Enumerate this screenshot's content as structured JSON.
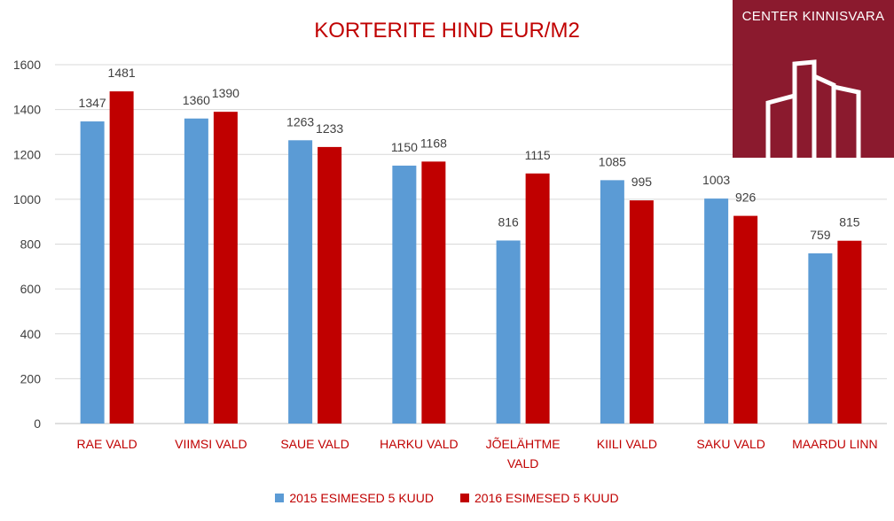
{
  "chart_data": {
    "type": "bar",
    "title": "KORTERITE HIND EUR/M2",
    "categories": [
      "RAE VALD",
      "VIIMSI VALD",
      "SAUE VALD",
      "HARKU VALD",
      "JÕELÄHTME VALD",
      "KIILI VALD",
      "SAKU VALD",
      "MAARDU LINN"
    ],
    "series": [
      {
        "name": "2015 ESIMESED 5 KUUD",
        "color": "#5b9bd5",
        "values": [
          1347,
          1360,
          1263,
          1150,
          816,
          1085,
          1003,
          759
        ]
      },
      {
        "name": "2016 ESIMESED 5 KUUD",
        "color": "#c00000",
        "values": [
          1481,
          1390,
          1233,
          1168,
          1115,
          995,
          926,
          815
        ]
      }
    ],
    "ylim": [
      0,
      1600
    ],
    "yticks": [
      0,
      200,
      400,
      600,
      800,
      1000,
      1200,
      1400,
      1600
    ],
    "grid": true,
    "legend_position": "bottom"
  },
  "logo": {
    "text": "CENTER KINNISVARA",
    "color": "#8b1a2e"
  },
  "colors": {
    "title": "#c00000",
    "category_label": "#c00000",
    "legend_text": "#c00000"
  }
}
